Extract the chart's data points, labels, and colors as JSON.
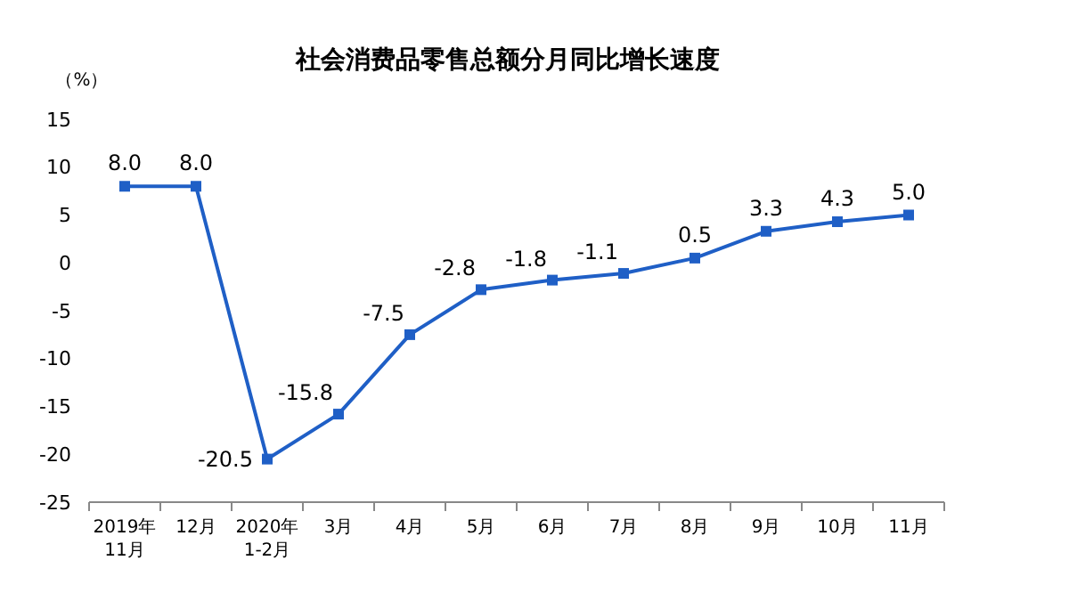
{
  "chart_data": {
    "type": "line",
    "title": "社会消费品零售总额分月同比增长速度",
    "ylabel": "（%）",
    "categories": [
      "2019年\n11月",
      "12月",
      "2020年\n1-2月",
      "3月",
      "4月",
      "5月",
      "6月",
      "7月",
      "8月",
      "9月",
      "10月",
      "11月"
    ],
    "series": [
      {
        "color": "#1f5fc6",
        "values": [
          8,
          8,
          -20.5,
          -15.8,
          -7.5,
          -2.8,
          -1.8,
          -1.1,
          0.5,
          3.3,
          4.3,
          5
        ],
        "value_labels": [
          "8.0",
          "8.0",
          "-20.5",
          "-15.8",
          "-7.5",
          "-2.8",
          "-1.8",
          "-1.1",
          "0.5",
          "3.3",
          "4.3",
          "5.0"
        ]
      }
    ],
    "ylim": [
      -25,
      15
    ],
    "yticks": [
      -25,
      -20,
      -15,
      -10,
      -5,
      0,
      5,
      10,
      15
    ],
    "marker": "square",
    "grid": false
  }
}
